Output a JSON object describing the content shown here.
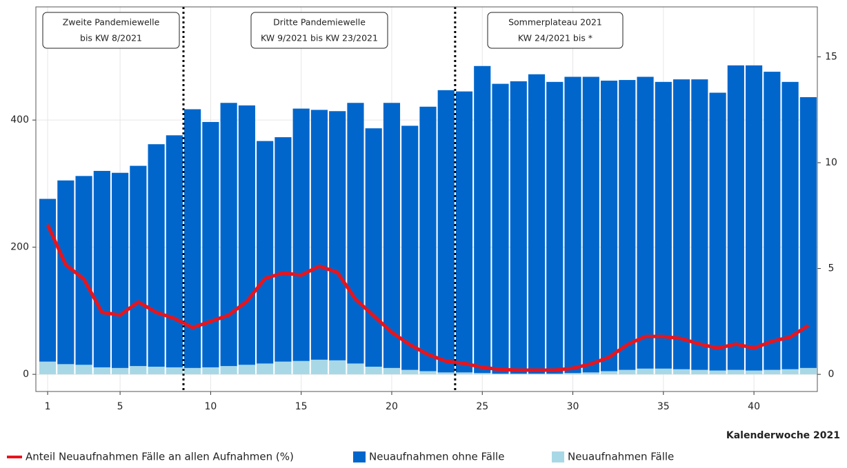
{
  "chart_data": {
    "type": "bar",
    "x_label": "Kalenderwoche 2021",
    "x": [
      1,
      2,
      3,
      4,
      5,
      6,
      7,
      8,
      9,
      10,
      11,
      12,
      13,
      14,
      15,
      16,
      17,
      18,
      19,
      20,
      21,
      22,
      23,
      24,
      25,
      26,
      27,
      28,
      29,
      30,
      31,
      32,
      33,
      34,
      35,
      36,
      37,
      38,
      39,
      40,
      41,
      42,
      43
    ],
    "xlim": [
      0.35,
      43.5
    ],
    "xticks": [
      1,
      5,
      10,
      15,
      20,
      25,
      30,
      35,
      40
    ],
    "ylim": [
      -27,
      578
    ],
    "yticks": [
      0,
      200,
      400
    ],
    "y2lim": [
      -0.81,
      17.36
    ],
    "y2ticks": [
      0,
      5,
      10,
      15
    ],
    "grid": true,
    "stacked": true,
    "dividers": [
      8.5,
      23.5
    ],
    "annotations": [
      {
        "lines": [
          "Zweite Pandemiewelle",
          "bis KW 8/2021"
        ]
      },
      {
        "lines": [
          "Dritte Pandemiewelle",
          "KW 9/2021 bis KW 23/2021"
        ]
      },
      {
        "lines": [
          "Sommerplateau 2021",
          "KW 24/2021 bis *"
        ]
      }
    ],
    "series": [
      {
        "name": "Anteil Neuaufnahmen Fälle an allen Aufnahmen (%)",
        "type": "line",
        "axis": "y2",
        "color": "#e8141c",
        "values": [
          7.07,
          5.18,
          4.5,
          2.93,
          2.8,
          3.42,
          2.93,
          2.64,
          2.21,
          2.5,
          2.8,
          3.45,
          4.53,
          4.79,
          4.69,
          5.11,
          4.82,
          3.55,
          2.77,
          1.99,
          1.4,
          0.94,
          0.62,
          0.52,
          0.33,
          0.23,
          0.2,
          0.2,
          0.2,
          0.29,
          0.49,
          0.81,
          1.4,
          1.79,
          1.79,
          1.69,
          1.43,
          1.24,
          1.43,
          1.24,
          1.56,
          1.76,
          2.31
        ]
      },
      {
        "name": "Neuaufnahmen ohne Fälle",
        "type": "bar",
        "color": "#0066cc",
        "values": [
          256,
          289,
          297,
          309,
          307,
          315,
          350,
          365,
          407,
          386,
          414,
          408,
          350,
          353,
          397,
          393,
          392,
          410,
          375,
          417,
          384,
          416,
          444,
          442,
          483,
          456,
          460,
          471,
          459,
          466,
          465,
          457,
          456,
          459,
          451,
          456,
          457,
          437,
          479,
          480,
          469,
          452,
          426
        ]
      },
      {
        "name": "Neuaufnahmen Fälle",
        "type": "bar",
        "color": "#a8d8e6",
        "values": [
          20,
          16,
          15,
          11,
          10,
          13,
          12,
          11,
          10,
          11,
          13,
          15,
          17,
          20,
          21,
          23,
          22,
          17,
          12,
          10,
          7,
          5,
          3,
          3,
          2,
          1,
          1,
          1,
          1,
          2,
          3,
          5,
          7,
          9,
          9,
          8,
          7,
          6,
          7,
          6,
          7,
          8,
          10
        ]
      }
    ]
  }
}
